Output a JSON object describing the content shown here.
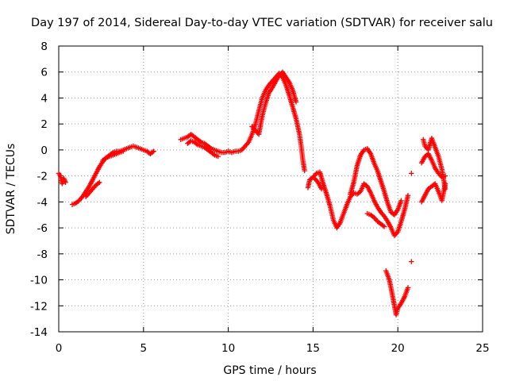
{
  "chart_data": {
    "type": "scatter",
    "title": "Day 197 of 2014, Sidereal Day-to-day VTEC variation (SDTVAR) for receiver salu",
    "xlabel": "GPS time / hours",
    "ylabel": "SDTVAR / TECUs",
    "xlim": [
      0,
      25
    ],
    "ylim": [
      -14,
      8
    ],
    "xticks": [
      "0",
      "5",
      "10",
      "15",
      "20",
      "25"
    ],
    "yticks": [
      "-14",
      "-12",
      "-10",
      "-8",
      "-6",
      "-4",
      "-2",
      "0",
      "2",
      "4",
      "6",
      "8"
    ],
    "grid": true,
    "marker": "plus",
    "color": "#ff0000",
    "segments": [
      [
        [
          0.0,
          -1.8
        ],
        [
          0.1,
          -2.0
        ],
        [
          0.2,
          -2.6
        ],
        [
          0.3,
          -2.2
        ],
        [
          0.4,
          -2.5
        ]
      ],
      [
        [
          0.8,
          -4.2
        ],
        [
          1.0,
          -4.1
        ],
        [
          1.2,
          -3.9
        ],
        [
          1.4,
          -3.6
        ],
        [
          1.6,
          -3.2
        ],
        [
          1.8,
          -2.8
        ],
        [
          2.0,
          -2.3
        ],
        [
          2.2,
          -1.8
        ],
        [
          2.4,
          -1.3
        ],
        [
          2.6,
          -0.9
        ],
        [
          2.8,
          -0.6
        ],
        [
          3.0,
          -0.4
        ],
        [
          3.2,
          -0.2
        ],
        [
          3.4,
          -0.1
        ],
        [
          3.6,
          -0.1
        ],
        [
          3.8,
          0.0
        ],
        [
          4.0,
          0.1
        ],
        [
          4.2,
          0.2
        ],
        [
          4.4,
          0.3
        ],
        [
          4.6,
          0.2
        ],
        [
          4.8,
          0.1
        ],
        [
          5.0,
          0.0
        ],
        [
          5.2,
          -0.1
        ],
        [
          5.4,
          -0.3
        ],
        [
          5.6,
          -0.1
        ]
      ],
      [
        [
          1.6,
          -3.6
        ],
        [
          1.8,
          -3.3
        ],
        [
          2.0,
          -3.0
        ],
        [
          2.2,
          -2.7
        ],
        [
          2.4,
          -2.5
        ]
      ],
      [
        [
          2.6,
          -0.8
        ],
        [
          2.8,
          -0.6
        ],
        [
          3.0,
          -0.5
        ],
        [
          3.2,
          -0.4
        ],
        [
          3.4,
          -0.3
        ],
        [
          3.6,
          -0.2
        ],
        [
          3.8,
          -0.1
        ]
      ],
      [
        [
          7.2,
          0.8
        ],
        [
          7.4,
          0.9
        ],
        [
          7.6,
          1.0
        ],
        [
          7.8,
          1.2
        ],
        [
          8.0,
          1.0
        ],
        [
          8.2,
          0.8
        ],
        [
          8.4,
          0.6
        ],
        [
          8.6,
          0.5
        ],
        [
          8.8,
          0.3
        ],
        [
          9.0,
          0.1
        ],
        [
          9.2,
          0.0
        ],
        [
          9.4,
          -0.1
        ],
        [
          9.6,
          -0.2
        ],
        [
          9.8,
          -0.2
        ],
        [
          10.0,
          -0.1
        ],
        [
          10.2,
          -0.2
        ],
        [
          10.4,
          -0.1
        ],
        [
          10.6,
          -0.1
        ],
        [
          10.8,
          0.0
        ],
        [
          11.0,
          0.3
        ],
        [
          11.2,
          0.6
        ],
        [
          11.4,
          1.2
        ],
        [
          11.6,
          2.0
        ],
        [
          11.8,
          3.0
        ],
        [
          12.0,
          4.0
        ],
        [
          12.2,
          4.6
        ],
        [
          12.4,
          5.0
        ],
        [
          12.6,
          5.3
        ],
        [
          12.8,
          5.6
        ],
        [
          13.0,
          5.9
        ],
        [
          13.2,
          5.6
        ],
        [
          13.4,
          5.0
        ],
        [
          13.6,
          4.2
        ],
        [
          13.8,
          3.3
        ],
        [
          14.0,
          2.4
        ],
        [
          14.2,
          1.2
        ],
        [
          14.3,
          0.3
        ],
        [
          14.4,
          -0.8
        ],
        [
          14.5,
          -1.6
        ]
      ],
      [
        [
          7.6,
          0.5
        ],
        [
          7.8,
          0.7
        ],
        [
          8.0,
          0.6
        ],
        [
          8.2,
          0.4
        ],
        [
          8.4,
          0.3
        ],
        [
          8.6,
          0.2
        ],
        [
          8.8,
          0.0
        ],
        [
          9.0,
          -0.2
        ],
        [
          9.2,
          -0.4
        ],
        [
          9.4,
          -0.5
        ]
      ],
      [
        [
          11.4,
          1.8
        ],
        [
          11.6,
          1.5
        ],
        [
          11.8,
          1.2
        ],
        [
          12.0,
          2.6
        ],
        [
          12.2,
          3.6
        ],
        [
          12.4,
          4.4
        ],
        [
          12.6,
          4.8
        ],
        [
          12.8,
          5.3
        ],
        [
          13.0,
          5.7
        ],
        [
          13.2,
          6.0
        ],
        [
          13.4,
          5.6
        ],
        [
          13.6,
          5.2
        ],
        [
          13.8,
          4.6
        ],
        [
          14.0,
          3.7
        ]
      ],
      [
        [
          14.7,
          -2.9
        ],
        [
          14.8,
          -2.3
        ],
        [
          15.0,
          -2.1
        ],
        [
          15.2,
          -1.8
        ],
        [
          15.4,
          -1.7
        ],
        [
          15.6,
          -2.6
        ],
        [
          15.8,
          -3.4
        ],
        [
          16.0,
          -4.3
        ],
        [
          16.2,
          -5.4
        ],
        [
          16.4,
          -6.0
        ],
        [
          16.6,
          -5.6
        ],
        [
          16.8,
          -4.9
        ],
        [
          17.0,
          -4.2
        ],
        [
          17.2,
          -3.6
        ],
        [
          17.4,
          -3.3
        ],
        [
          17.6,
          -3.4
        ],
        [
          17.8,
          -3.2
        ],
        [
          18.0,
          -2.6
        ],
        [
          18.2,
          -2.8
        ],
        [
          18.4,
          -3.3
        ],
        [
          18.6,
          -3.9
        ],
        [
          18.8,
          -4.4
        ],
        [
          19.0,
          -4.8
        ],
        [
          19.2,
          -5.1
        ],
        [
          19.4,
          -5.5
        ],
        [
          19.6,
          -6.0
        ],
        [
          19.8,
          -6.6
        ],
        [
          20.0,
          -6.3
        ],
        [
          20.2,
          -5.5
        ],
        [
          20.4,
          -4.6
        ],
        [
          20.6,
          -3.5
        ]
      ],
      [
        [
          17.2,
          -3.4
        ],
        [
          17.4,
          -2.5
        ],
        [
          17.6,
          -1.2
        ],
        [
          17.8,
          -0.4
        ],
        [
          18.0,
          0.0
        ],
        [
          18.2,
          0.1
        ],
        [
          18.4,
          -0.3
        ],
        [
          18.6,
          -1.0
        ],
        [
          18.8,
          -1.6
        ],
        [
          19.0,
          -2.4
        ],
        [
          19.2,
          -3.2
        ],
        [
          19.4,
          -4.1
        ],
        [
          19.6,
          -4.8
        ],
        [
          19.8,
          -5.0
        ],
        [
          20.0,
          -4.6
        ],
        [
          20.2,
          -3.9
        ]
      ],
      [
        [
          18.2,
          -4.9
        ],
        [
          18.4,
          -5.0
        ],
        [
          18.6,
          -5.2
        ],
        [
          18.8,
          -5.5
        ],
        [
          19.0,
          -5.7
        ],
        [
          19.2,
          -5.9
        ]
      ],
      [
        [
          15.1,
          -2.2
        ],
        [
          15.3,
          -2.5
        ],
        [
          15.5,
          -3.0
        ]
      ],
      [
        [
          19.3,
          -9.3
        ],
        [
          19.5,
          -10.0
        ],
        [
          19.7,
          -11.3
        ],
        [
          19.9,
          -12.7
        ],
        [
          20.0,
          -12.2
        ],
        [
          20.2,
          -11.8
        ],
        [
          20.4,
          -11.3
        ],
        [
          20.6,
          -10.6
        ]
      ],
      [
        [
          20.8,
          -1.8
        ]
      ],
      [
        [
          20.8,
          -8.6
        ]
      ],
      [
        [
          21.4,
          -4.0
        ],
        [
          21.6,
          -3.5
        ],
        [
          21.8,
          -3.0
        ],
        [
          22.0,
          -2.8
        ],
        [
          22.2,
          -2.6
        ],
        [
          22.4,
          -3.2
        ],
        [
          22.6,
          -3.9
        ],
        [
          22.8,
          -2.6
        ]
      ],
      [
        [
          21.4,
          -1.0
        ],
        [
          21.6,
          -0.5
        ],
        [
          21.8,
          -0.3
        ],
        [
          22.0,
          -0.8
        ],
        [
          22.2,
          -1.4
        ],
        [
          22.4,
          -1.8
        ],
        [
          22.6,
          -2.1
        ],
        [
          22.8,
          -2.0
        ]
      ],
      [
        [
          21.5,
          0.8
        ],
        [
          21.6,
          0.3
        ],
        [
          21.8,
          0.0
        ],
        [
          22.0,
          0.9
        ],
        [
          22.2,
          0.2
        ],
        [
          22.4,
          -0.5
        ],
        [
          22.6,
          -1.5
        ],
        [
          22.8,
          -3.0
        ]
      ]
    ]
  }
}
